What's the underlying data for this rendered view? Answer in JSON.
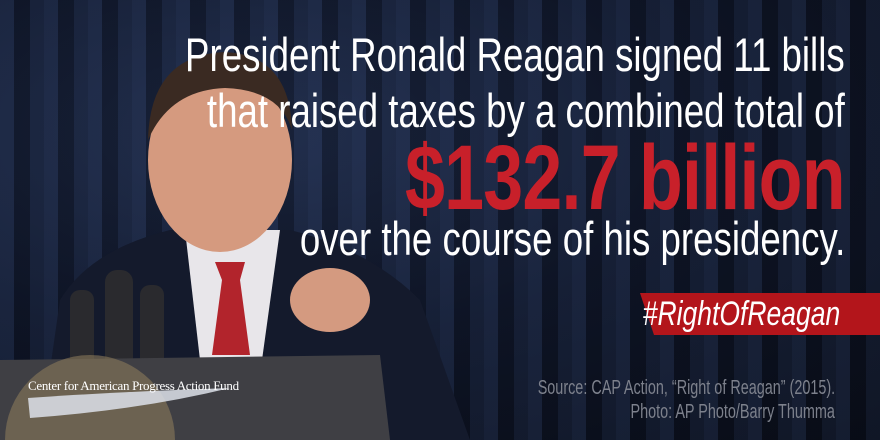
{
  "headline": {
    "line1": "President Ronald Reagan signed 11 bills",
    "line2": "that raised taxes by a combined  total of",
    "amount": "$132.7 billion",
    "line4": "over the course of his presidency."
  },
  "hashtag": "#RightOfReagan",
  "source": {
    "line1": "Source: CAP Action, “Right of Reagan” (2015).",
    "line2": "Photo: AP Photo/Barry Thumma"
  },
  "logo": {
    "text": "Center for American Progress Action Fund"
  },
  "colors": {
    "accent_red": "#c8202a",
    "banner_red": "#b3151b",
    "background": "#0d1220",
    "source_gray": "#7d818c"
  }
}
